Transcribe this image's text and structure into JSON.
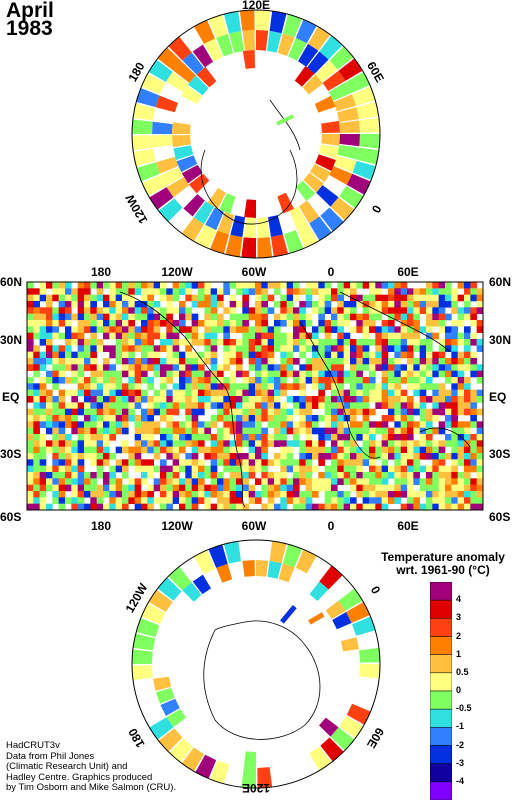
{
  "title": {
    "month": "April",
    "year": "1983"
  },
  "polar_north": {
    "lon_labels": [
      "120E",
      "60E",
      "0",
      "120W",
      "180"
    ]
  },
  "map": {
    "top_lon_labels": [
      "180",
      "120W",
      "60W",
      "0",
      "60E"
    ],
    "bottom_lon_labels": [
      "180",
      "120W",
      "60W",
      "0",
      "60E"
    ],
    "lat_labels": [
      "60N",
      "30N",
      "EQ",
      "30S",
      "60S"
    ]
  },
  "polar_south": {
    "lon_labels": [
      "120W",
      "0",
      "60E",
      "120E",
      "180"
    ]
  },
  "legend": {
    "title_line1": "Temperature anomaly",
    "title_line2": "wrt. 1961-90  (°C)",
    "levels": [
      "4",
      "3",
      "2",
      "1",
      "0.5",
      "0",
      "-0.5",
      "-1",
      "-2",
      "-3",
      "-4"
    ],
    "colors": [
      "#a0007a",
      "#e00000",
      "#ff4010",
      "#ff8000",
      "#ffc040",
      "#ffff80",
      "#80ff60",
      "#30e0e0",
      "#3080ff",
      "#0030e0",
      "#1000a0",
      "#8000ff"
    ]
  },
  "credit": [
    "HadCRUT3v",
    "Data from Phil Jones",
    "(Climatic Research Unit) and",
    "Hadley Centre.  Graphics produced",
    "by Tim Osborn and Mike Salmon (CRU)."
  ]
}
